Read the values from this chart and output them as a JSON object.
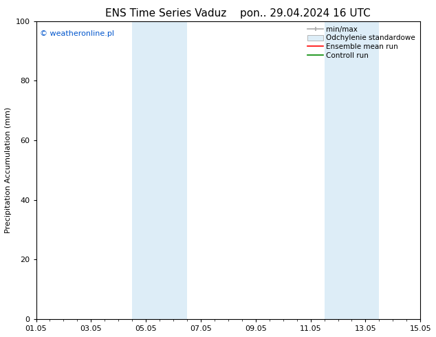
{
  "title": "ENS Time Series Vaduz",
  "title2": "pon.. 29.04.2024 16 UTC",
  "ylabel": "Precipitation Accumulation (mm)",
  "ylim": [
    0,
    100
  ],
  "xlim": [
    0,
    14
  ],
  "xtick_labels": [
    "01.05",
    "03.05",
    "05.05",
    "07.05",
    "09.05",
    "11.05",
    "13.05",
    "15.05"
  ],
  "xtick_positions": [
    0,
    2,
    4,
    6,
    8,
    10,
    12,
    14
  ],
  "ytick_labels": [
    "0",
    "20",
    "40",
    "60",
    "80",
    "100"
  ],
  "ytick_positions": [
    0,
    20,
    40,
    60,
    80,
    100
  ],
  "background_color": "#ffffff",
  "plot_bg_color": "#ffffff",
  "shaded_bands": [
    {
      "x_start": 3.5,
      "x_end": 5.5,
      "color": "#ddedf7"
    },
    {
      "x_start": 10.5,
      "x_end": 12.5,
      "color": "#ddedf7"
    }
  ],
  "copyright_text": "© weatheronline.pl",
  "copyright_color": "#0055cc",
  "legend_labels": [
    "min/max",
    "Odchylenie standardowe",
    "Ensemble mean run",
    "Controll run"
  ],
  "legend_line_color": "#aaaaaa",
  "legend_patch_color": "#ddedf7",
  "legend_patch_edge": "#aaaaaa",
  "legend_red": "#ff0000",
  "legend_green": "#008800",
  "title_fontsize": 11,
  "ylabel_fontsize": 8,
  "tick_fontsize": 8,
  "legend_fontsize": 7.5,
  "copyright_fontsize": 8
}
